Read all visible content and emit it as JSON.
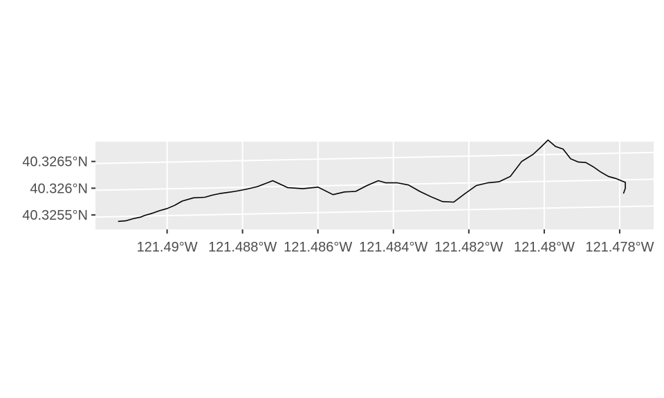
{
  "chart_data": {
    "type": "line",
    "title": "",
    "xlabel": "",
    "ylabel": "",
    "xlim": [
      -121.4919,
      -121.4771
    ],
    "ylim": [
      40.32523,
      40.32687
    ],
    "x_ticks": [
      {
        "value": -121.49,
        "label": "121.49°W"
      },
      {
        "value": -121.488,
        "label": "121.488°W"
      },
      {
        "value": -121.486,
        "label": "121.486°W"
      },
      {
        "value": -121.484,
        "label": "121.484°W"
      },
      {
        "value": -121.482,
        "label": "121.482°W"
      },
      {
        "value": -121.48,
        "label": "121.48°W"
      },
      {
        "value": -121.478,
        "label": "121.478°W"
      }
    ],
    "y_ticks": [
      {
        "value": 40.3265,
        "label": "40.3265°N"
      },
      {
        "value": 40.326,
        "label": "40.326°N"
      },
      {
        "value": 40.3255,
        "label": "40.3255°N"
      }
    ],
    "grid": true,
    "legend": "none",
    "colors": {
      "panel": "#ebebeb",
      "grid": "#ffffff",
      "line": "#000000",
      "tick_text": "#4d4d4d",
      "tick_mark": "#333333"
    },
    "series": [
      {
        "x": [
          -121.4913,
          -121.4911,
          -121.4909,
          -121.4907,
          -121.4906,
          -121.4904,
          -121.4902,
          -121.49,
          -121.4898,
          -121.4896,
          -121.4893,
          -121.489,
          -121.4888,
          -121.4886,
          -121.4884,
          -121.4882,
          -121.4879,
          -121.4876,
          -121.4872,
          -121.4868,
          -121.4864,
          -121.486,
          -121.4856,
          -121.4853,
          -121.485,
          -121.4847,
          -121.4844,
          -121.4842,
          -121.4839,
          -121.4836,
          -121.4833,
          -121.483,
          -121.4827,
          -121.4824,
          -121.4821,
          -121.4818,
          -121.4815,
          -121.4812,
          -121.4809,
          -121.4806,
          -121.4803,
          -121.4801,
          -121.4799,
          -121.4797,
          -121.4795,
          -121.4793,
          -121.4791,
          -121.4789,
          -121.4787,
          -121.4785,
          -121.4783,
          -121.4781,
          -121.47785,
          -121.47785,
          -121.4779
        ],
        "y": [
          40.32538,
          40.32539,
          40.32543,
          40.32546,
          40.32549,
          40.32553,
          40.32558,
          40.32562,
          40.32568,
          40.32576,
          40.32582,
          40.32583,
          40.32587,
          40.3259,
          40.32592,
          40.32594,
          40.32598,
          40.32603,
          40.32614,
          40.32601,
          40.32599,
          40.32602,
          40.32588,
          40.32593,
          40.32594,
          40.32605,
          40.32614,
          40.3261,
          40.3261,
          40.32606,
          40.32594,
          40.32584,
          40.32575,
          40.32574,
          40.3259,
          40.32605,
          40.3261,
          40.32612,
          40.32622,
          40.3265,
          40.32663,
          40.32676,
          40.3269,
          40.32678,
          40.32673,
          40.32655,
          40.32649,
          40.32648,
          40.3264,
          40.3263,
          40.32622,
          40.32618,
          40.32611,
          40.326,
          40.3259
        ]
      }
    ]
  }
}
